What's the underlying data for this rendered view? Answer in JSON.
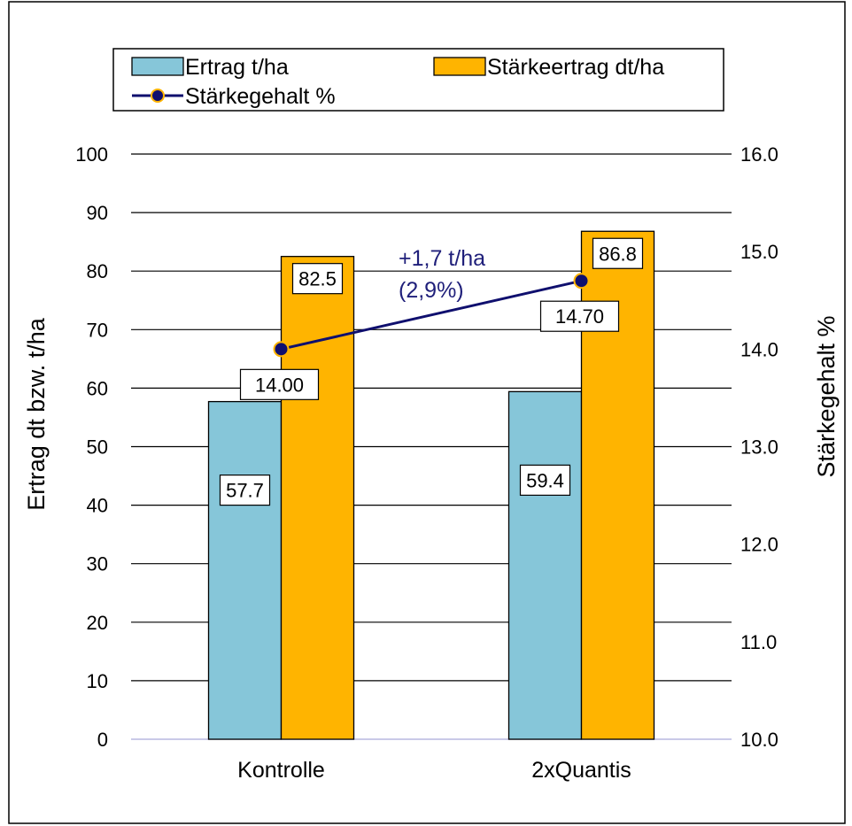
{
  "chart_data": {
    "type": "bar",
    "categories": [
      "Kontrolle",
      "2xQuantis"
    ],
    "series": [
      {
        "name": "Ertrag t/ha",
        "axis": "left",
        "type": "bar",
        "color": "#86C6D9",
        "values": [
          57.7,
          59.4
        ],
        "labels": [
          "57.7",
          "59.4"
        ]
      },
      {
        "name": "Stärkeertrag dt/ha",
        "axis": "left",
        "type": "bar",
        "color": "#FFB400",
        "values": [
          82.5,
          86.8
        ],
        "labels": [
          "82.5",
          "86.8"
        ]
      },
      {
        "name": "Stärkegehalt %",
        "axis": "right",
        "type": "line",
        "color": "#0F0F6E",
        "marker_fill": "#0F0F6E",
        "marker_edge": "#FFB400",
        "values": [
          14.0,
          14.7
        ],
        "labels": [
          "14.00",
          "14.70"
        ]
      }
    ],
    "ylabel": "Ertrag dt bzw. t/ha",
    "ylabel_right": "Stärkegehalt %",
    "ylim": [
      0,
      100
    ],
    "ylim_right": [
      10.0,
      16.0
    ],
    "yticks": [
      "0",
      "10",
      "20",
      "30",
      "40",
      "50",
      "60",
      "70",
      "80",
      "90",
      "100"
    ],
    "yticks_right": [
      "10.0",
      "11.0",
      "12.0",
      "13.0",
      "14.0",
      "15.0",
      "16.0"
    ],
    "annotation": {
      "lines": [
        "+1,7 t/ha",
        "(2,9%)"
      ],
      "color": "#1F1F7A"
    },
    "grid": true,
    "legend_position": "top-left"
  }
}
